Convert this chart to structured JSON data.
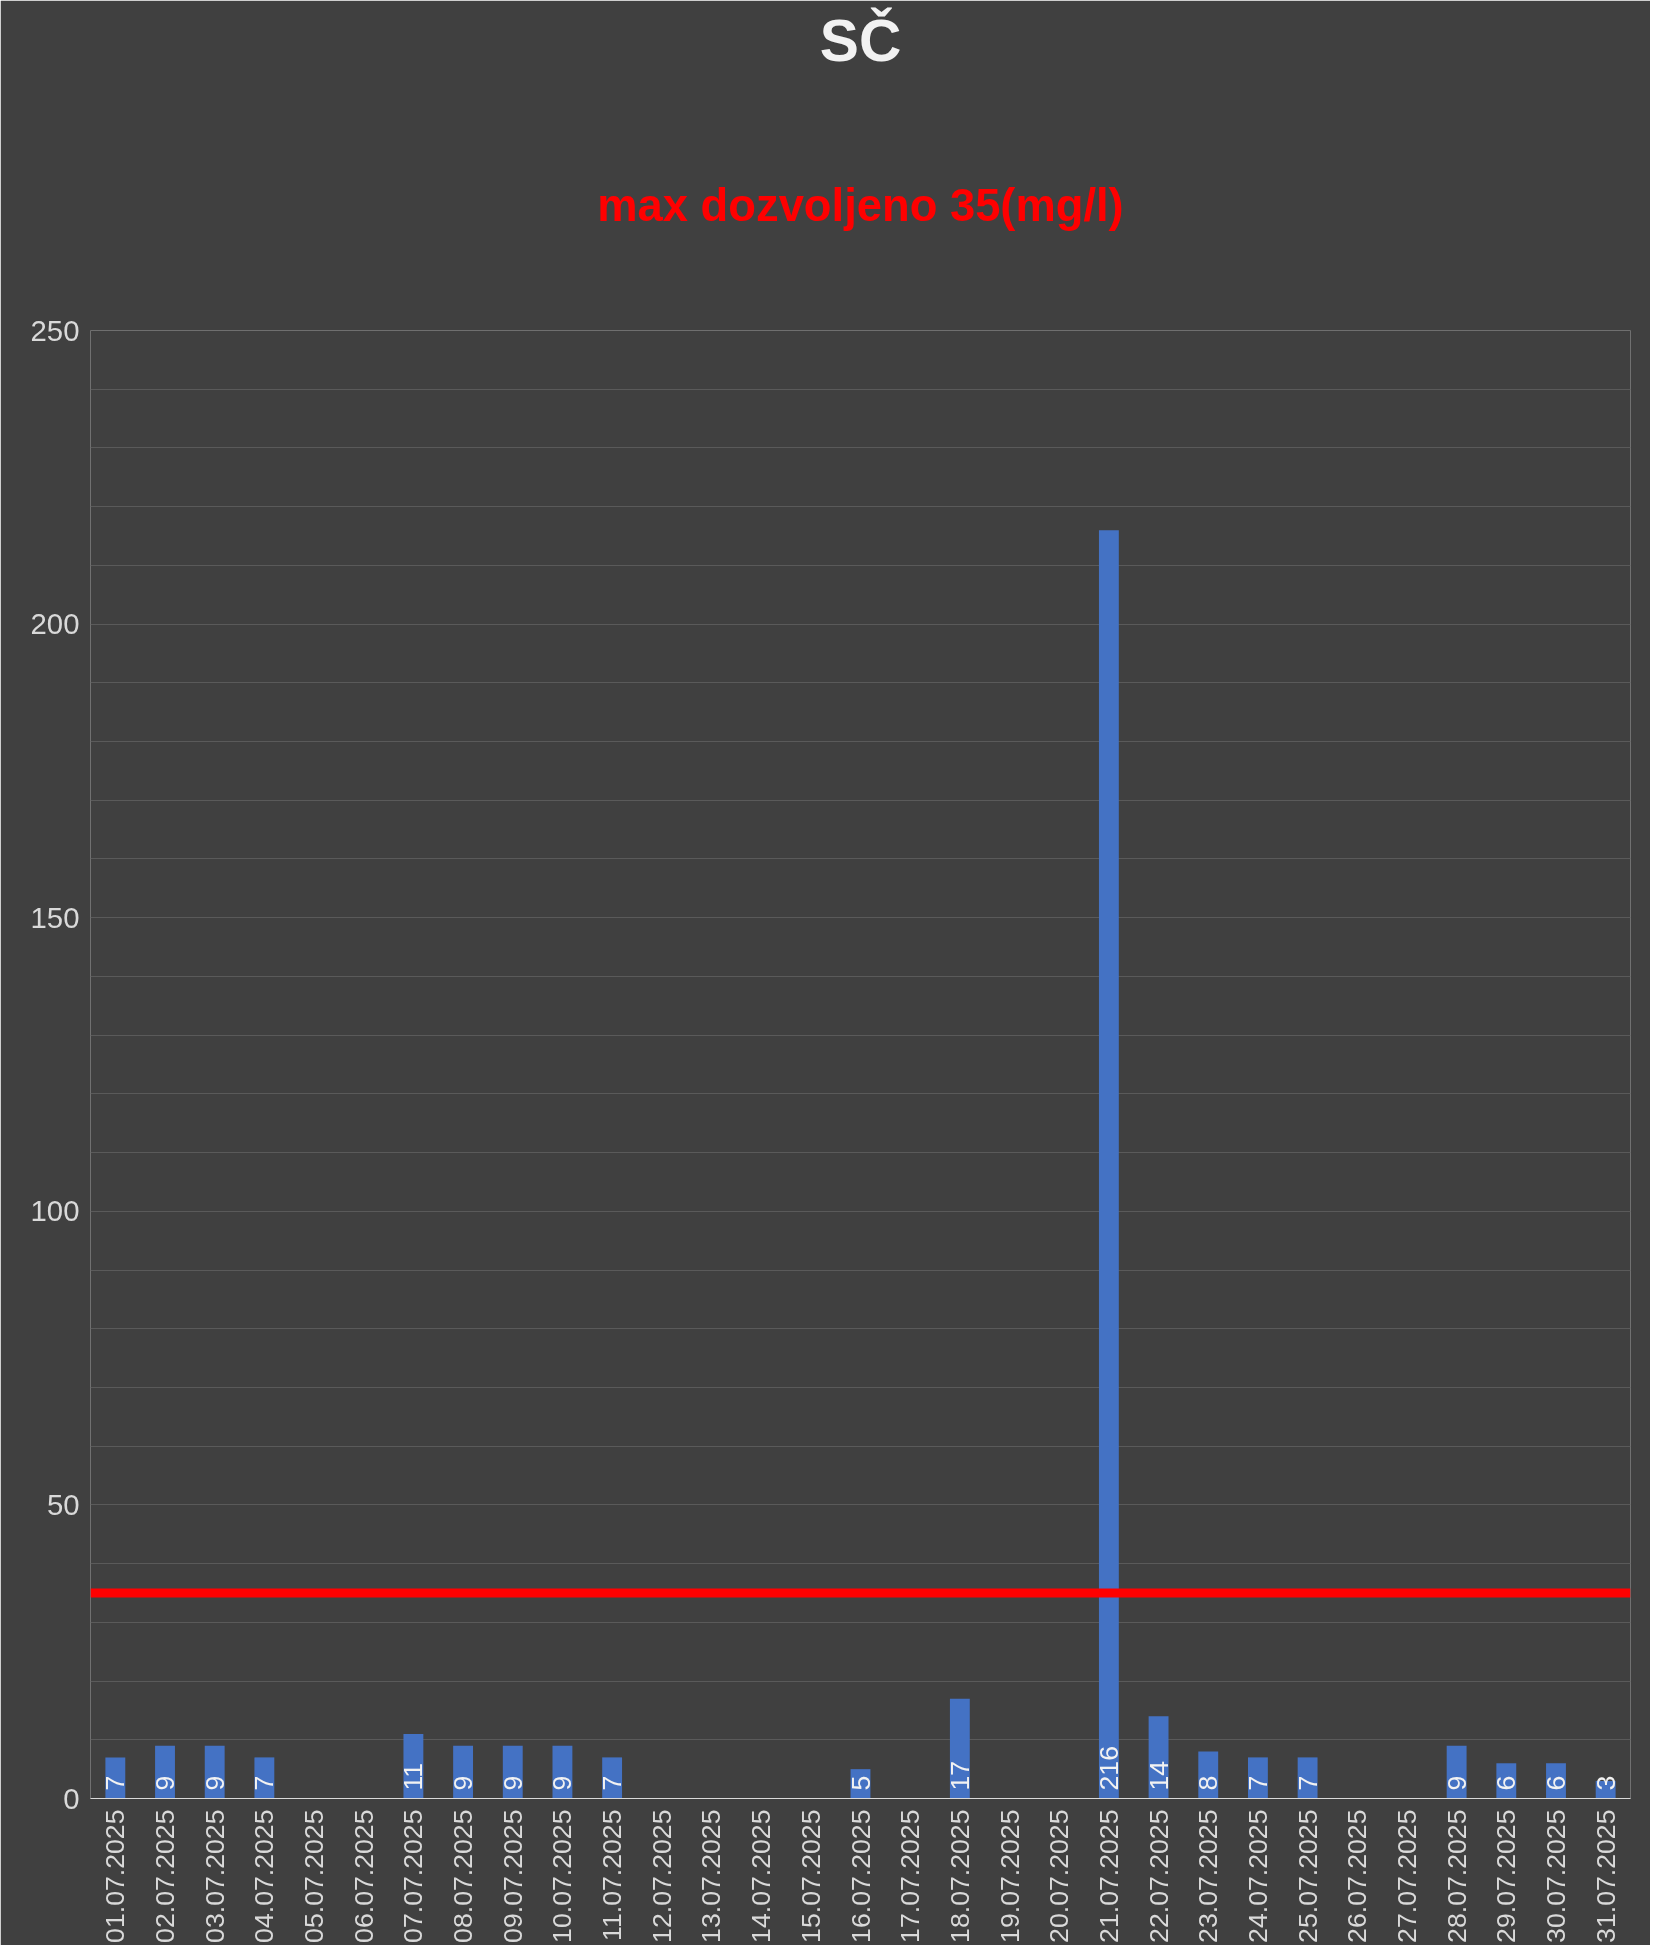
{
  "chart_data": {
    "type": "bar",
    "title": "SČ",
    "subtitle": "max dozvoljeno 35(mg/l)",
    "categories": [
      "01.07.2025",
      "02.07.2025",
      "03.07.2025",
      "04.07.2025",
      "05.07.2025",
      "06.07.2025",
      "07.07.2025",
      "08.07.2025",
      "09.07.2025",
      "10.07.2025",
      "11.07.2025",
      "12.07.2025",
      "13.07.2025",
      "14.07.2025",
      "15.07.2025",
      "16.07.2025",
      "17.07.2025",
      "18.07.2025",
      "19.07.2025",
      "20.07.2025",
      "21.07.2025",
      "22.07.2025",
      "23.07.2025",
      "24.07.2025",
      "25.07.2025",
      "26.07.2025",
      "27.07.2025",
      "28.07.2025",
      "29.07.2025",
      "30.07.2025",
      "31.07.2025"
    ],
    "values": [
      7,
      9,
      9,
      7,
      null,
      null,
      11,
      9,
      9,
      9,
      7,
      null,
      null,
      null,
      null,
      5,
      null,
      17,
      null,
      null,
      216,
      14,
      8,
      7,
      7,
      null,
      null,
      9,
      6,
      6,
      3
    ],
    "color": "#4472c4",
    "data_labels": true,
    "ylim": [
      0,
      250
    ],
    "yticks": [
      0,
      {
        "value": 10,
        "label": null
      },
      {
        "value": 20,
        "label": null
      },
      {
        "value": 30,
        "label": null
      },
      {
        "value": 40,
        "label": null
      },
      50,
      {
        "value": 60,
        "label": null
      },
      {
        "value": 70,
        "label": null
      },
      {
        "value": 80,
        "label": null
      },
      {
        "value": 90,
        "label": null
      },
      100,
      {
        "value": 110,
        "label": null
      },
      {
        "value": 120,
        "label": null
      },
      {
        "value": 130,
        "label": null
      },
      {
        "value": 140,
        "label": null
      },
      150,
      {
        "value": 160,
        "label": null
      },
      {
        "value": 170,
        "label": null
      },
      {
        "value": 180,
        "label": null
      },
      {
        "value": 190,
        "label": null
      },
      200,
      {
        "value": 210,
        "label": null
      },
      {
        "value": 220,
        "label": null
      },
      {
        "value": 230,
        "label": null
      },
      {
        "value": 240,
        "label": null
      },
      250
    ],
    "grid": "y",
    "ref_lines": [
      {
        "axis": "y",
        "value": 35,
        "color": "#ff0000"
      }
    ]
  }
}
